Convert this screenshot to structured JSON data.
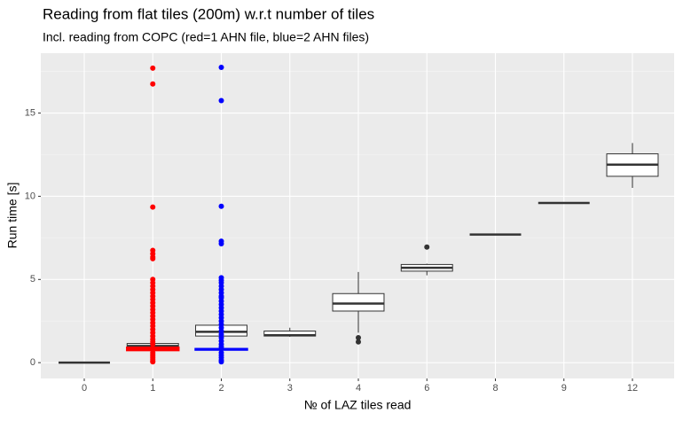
{
  "chart_data": {
    "type": "boxplot",
    "title": "Reading from flat tiles (200m) w.r.t number of tiles",
    "subtitle": "Incl. reading from COPC (red=1 AHN file, blue=2 AHN files)",
    "x_label": "№ of LAZ tiles read",
    "y_label": "Run time [s]",
    "categories": [
      "0",
      "1",
      "2",
      "3",
      "4",
      "6",
      "8",
      "9",
      "12"
    ],
    "ylim": [
      -0.95,
      18.6
    ],
    "yticks": [
      0,
      5,
      10,
      15
    ],
    "minor_yticks": [
      2.5,
      7.5,
      12.5,
      17.5
    ],
    "grid": true,
    "series": [
      {
        "color": "#333333",
        "min": [
          0,
          0.6,
          0.5,
          1.55,
          1.8,
          5.25,
          7.7,
          9.6,
          10.5
        ],
        "q1": [
          0,
          0.85,
          1.6,
          1.6,
          3.1,
          5.5,
          7.7,
          9.6,
          11.2
        ],
        "median": [
          0,
          1.0,
          1.85,
          1.65,
          3.55,
          5.7,
          7.7,
          9.6,
          11.9
        ],
        "q3": [
          0,
          1.15,
          2.25,
          1.9,
          4.15,
          5.9,
          7.7,
          9.6,
          12.55
        ],
        "max": [
          0,
          1.3,
          3.2,
          2.1,
          5.45,
          5.95,
          7.7,
          9.6,
          13.2
        ],
        "outliers": [
          [],
          [],
          [],
          [],
          [
            1.5,
            1.25
          ],
          [
            6.95
          ],
          [],
          [],
          []
        ]
      },
      {
        "color": "#ff0000",
        "min": [
          null,
          0.7,
          null,
          null,
          null,
          null,
          null,
          null,
          null
        ],
        "q1": [
          null,
          0.75,
          null,
          null,
          null,
          null,
          null,
          null,
          null
        ],
        "median": [
          null,
          0.82,
          null,
          null,
          null,
          null,
          null,
          null,
          null
        ],
        "q3": [
          null,
          0.9,
          null,
          null,
          null,
          null,
          null,
          null,
          null
        ],
        "max": [
          null,
          1.0,
          null,
          null,
          null,
          null,
          null,
          null,
          null
        ],
        "outliers": [
          [],
          [
            17.7,
            16.75,
            9.35,
            6.75,
            6.55,
            6.35,
            6.25,
            5.0,
            4.8,
            4.6,
            4.4,
            4.2,
            4.0,
            3.8,
            3.6,
            3.4,
            3.2,
            3.0,
            2.8,
            2.6,
            2.4,
            2.2,
            2.0,
            1.8,
            1.6,
            1.4,
            1.25,
            1.1,
            0.6,
            0.5,
            0.4,
            0.3,
            0.2,
            0.1,
            0.05
          ],
          [],
          [],
          [],
          [],
          [],
          [],
          []
        ]
      },
      {
        "color": "#0000ff",
        "min": [
          null,
          null,
          0.75,
          null,
          null,
          null,
          null,
          null,
          null
        ],
        "q1": [
          null,
          null,
          0.78,
          null,
          null,
          null,
          null,
          null,
          null
        ],
        "median": [
          null,
          null,
          0.8,
          null,
          null,
          null,
          null,
          null,
          null
        ],
        "q3": [
          null,
          null,
          0.82,
          null,
          null,
          null,
          null,
          null,
          null
        ],
        "max": [
          null,
          null,
          0.85,
          null,
          null,
          null,
          null,
          null,
          null
        ],
        "outliers": [
          [],
          [],
          [
            17.75,
            15.75,
            9.4,
            7.3,
            7.15,
            5.1,
            4.95,
            4.8,
            4.6,
            4.4,
            4.2,
            4.0,
            3.9,
            3.7,
            3.5,
            3.3,
            3.1,
            2.9,
            2.7,
            2.5,
            2.3,
            2.1,
            1.9,
            1.7,
            1.5,
            1.3,
            1.1,
            0.95,
            0.6,
            0.45,
            0.3,
            0.15,
            0.05
          ],
          [],
          [],
          [],
          [],
          [],
          []
        ]
      }
    ]
  }
}
